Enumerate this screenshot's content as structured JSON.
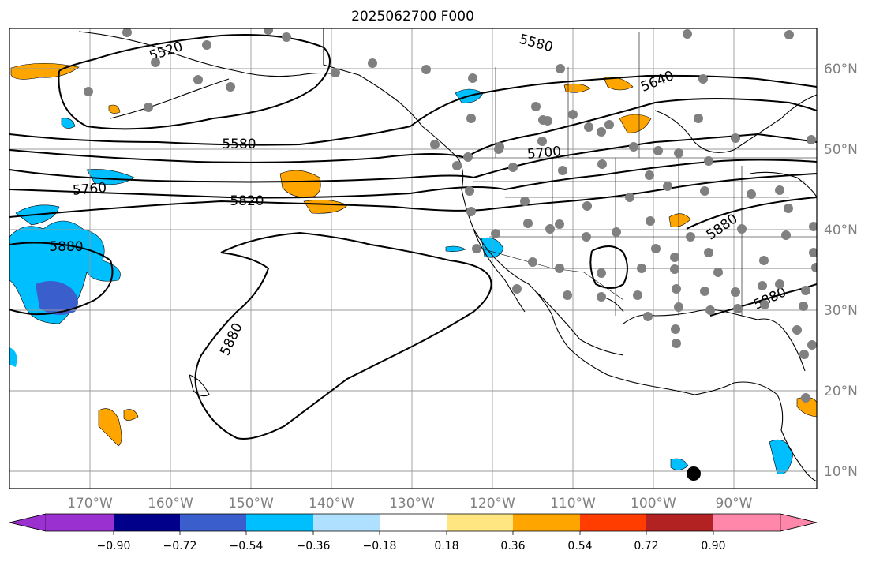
{
  "title": "2025062700 F000",
  "longitude_labels": [
    "170°W",
    "160°W",
    "150°W",
    "140°W",
    "130°W",
    "120°W",
    "110°W",
    "100°W",
    "90°W"
  ],
  "latitude_labels": [
    "60°N",
    "50°N",
    "40°N",
    "30°N",
    "20°N",
    "10°N"
  ],
  "contour_labels": [
    "5520",
    "5580",
    "5640",
    "5580",
    "5700",
    "5760",
    "5820",
    "5880",
    "5880",
    "5880",
    "5880"
  ],
  "colorbar": {
    "ticks": [
      "−0.90",
      "−0.72",
      "−0.54",
      "−0.36",
      "−0.18",
      "0.18",
      "0.36",
      "0.54",
      "0.72",
      "0.90"
    ],
    "colors": [
      "#9b30d0",
      "#00008b",
      "#3a5fcd",
      "#00bfff",
      "#b0e0ff",
      "#ffffff",
      "#ffe680",
      "#ffa500",
      "#ff3d00",
      "#b22222",
      "#ff88aa"
    ]
  },
  "station_dot_color": "#808080",
  "coast_color": "#000000"
}
